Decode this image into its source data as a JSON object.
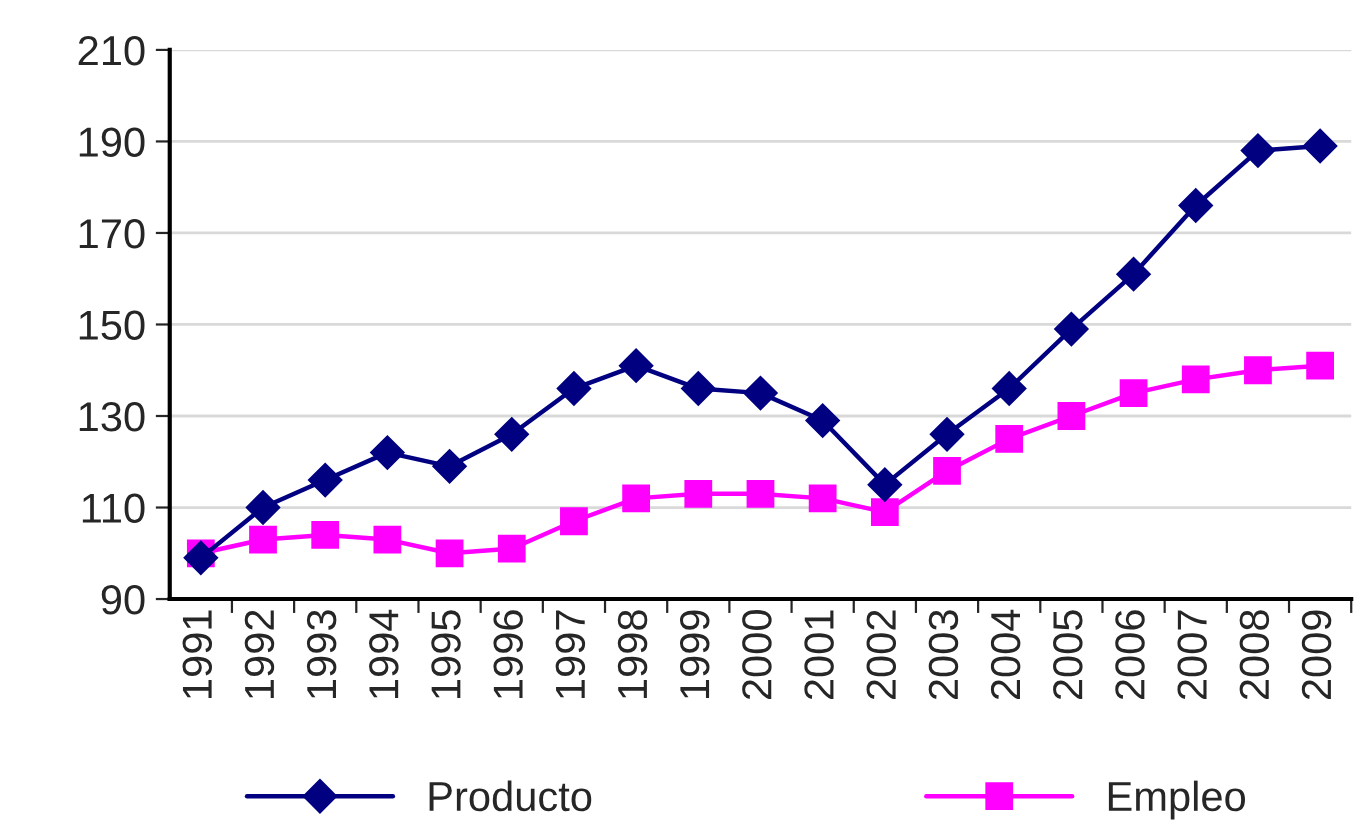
{
  "chart_data": {
    "type": "line",
    "categories": [
      "1991",
      "1992",
      "1993",
      "1994",
      "1995",
      "1996",
      "1997",
      "1998",
      "1999",
      "2000",
      "2001",
      "2002",
      "2003",
      "2004",
      "2005",
      "2006",
      "2007",
      "2008",
      "2009"
    ],
    "series": [
      {
        "name": "Producto",
        "color": "#000080",
        "marker": "diamond",
        "values": [
          99,
          110,
          116,
          122,
          119,
          126,
          136,
          141,
          136,
          135,
          129,
          115,
          126,
          136,
          149,
          161,
          176,
          188,
          189
        ]
      },
      {
        "name": "Empleo",
        "color": "#ff00ff",
        "marker": "square",
        "values": [
          100,
          103,
          104,
          103,
          100,
          101,
          107,
          112,
          113,
          113,
          112,
          109,
          118,
          125,
          130,
          135,
          138,
          140,
          141
        ]
      }
    ],
    "ylim": [
      90,
      210
    ],
    "yticks": [
      90,
      110,
      130,
      150,
      170,
      190,
      210
    ],
    "grid": "y",
    "legend": "bottom",
    "line_style": "solid"
  }
}
